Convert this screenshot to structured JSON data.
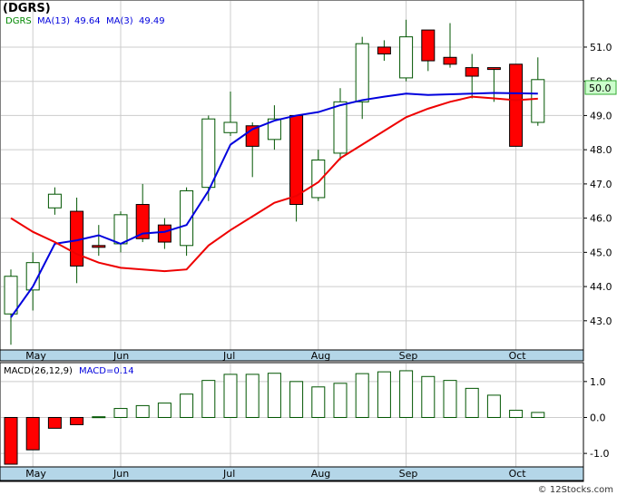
{
  "title": "(DGRS)",
  "legend": {
    "symbol": "DGRS",
    "ma13_label": "MA(13)",
    "ma13_value": "49.64",
    "ma3_label": "MA(3)",
    "ma3_value": "49.49",
    "macd_label": "MACD(26,12,9)",
    "macd_value_label": "MACD=0.14"
  },
  "last_price_label": "50.0",
  "watermark": "© 12Stocks.com",
  "colors": {
    "up_candle": "#ffffff",
    "down_candle": "#ff0000",
    "candle_border": "#005500",
    "ma13": "#0000dd",
    "ma3": "#ee0000",
    "axis_band": "#b4d6e8",
    "grid": "#cccccc",
    "last_price_bg": "#ccffcc"
  },
  "chart_data": [
    {
      "type": "candlestick",
      "title": "(DGRS)",
      "x_tick_labels": [
        {
          "label": "May",
          "index": 1
        },
        {
          "label": "Jun",
          "index": 5
        },
        {
          "label": "Jul",
          "index": 10
        },
        {
          "label": "Aug",
          "index": 14
        },
        {
          "label": "Sep",
          "index": 18
        },
        {
          "label": "Oct",
          "index": 23
        }
      ],
      "y_ticks": [
        43.0,
        44.0,
        45.0,
        46.0,
        47.0,
        48.0,
        49.0,
        50.0,
        51.0
      ],
      "ylim": [
        42.2,
        51.9
      ],
      "candles": [
        {
          "o": 43.2,
          "h": 44.5,
          "l": 42.3,
          "c": 44.3
        },
        {
          "o": 43.9,
          "h": 45.0,
          "l": 43.3,
          "c": 44.7
        },
        {
          "o": 46.3,
          "h": 46.9,
          "l": 46.1,
          "c": 46.7
        },
        {
          "o": 46.2,
          "h": 46.6,
          "l": 44.1,
          "c": 44.6
        },
        {
          "o": 45.2,
          "h": 45.8,
          "l": 44.9,
          "c": 45.15
        },
        {
          "o": 45.25,
          "h": 46.2,
          "l": 45.0,
          "c": 46.1
        },
        {
          "o": 46.4,
          "h": 47.0,
          "l": 45.3,
          "c": 45.4
        },
        {
          "o": 45.8,
          "h": 46.0,
          "l": 45.1,
          "c": 45.3
        },
        {
          "o": 45.2,
          "h": 46.9,
          "l": 44.9,
          "c": 46.8
        },
        {
          "o": 46.9,
          "h": 49.0,
          "l": 46.5,
          "c": 48.9
        },
        {
          "o": 48.5,
          "h": 49.7,
          "l": 48.4,
          "c": 48.8
        },
        {
          "o": 48.7,
          "h": 48.8,
          "l": 47.2,
          "c": 48.1
        },
        {
          "o": 48.3,
          "h": 49.3,
          "l": 48.0,
          "c": 48.9
        },
        {
          "o": 49.0,
          "h": 49.0,
          "l": 45.9,
          "c": 46.4
        },
        {
          "o": 46.6,
          "h": 48.0,
          "l": 46.5,
          "c": 47.7
        },
        {
          "o": 47.9,
          "h": 49.8,
          "l": 47.7,
          "c": 49.4
        },
        {
          "o": 49.4,
          "h": 51.3,
          "l": 48.9,
          "c": 51.1
        },
        {
          "o": 51.0,
          "h": 51.2,
          "l": 50.6,
          "c": 50.8
        },
        {
          "o": 50.1,
          "h": 51.8,
          "l": 50.0,
          "c": 51.3
        },
        {
          "o": 51.5,
          "h": 51.5,
          "l": 50.3,
          "c": 50.6
        },
        {
          "o": 50.7,
          "h": 51.7,
          "l": 50.4,
          "c": 50.5
        },
        {
          "o": 50.4,
          "h": 50.8,
          "l": 49.5,
          "c": 50.15
        },
        {
          "o": 50.4,
          "h": 50.4,
          "l": 49.4,
          "c": 50.35
        },
        {
          "o": 50.5,
          "h": 50.5,
          "l": 48.1,
          "c": 48.1
        },
        {
          "o": 48.8,
          "h": 50.7,
          "l": 48.7,
          "c": 50.05
        }
      ],
      "series": [
        {
          "name": "MA(13)",
          "values": [
            43.1,
            44.0,
            45.25,
            45.35,
            45.5,
            45.25,
            45.55,
            45.6,
            45.8,
            46.8,
            48.15,
            48.6,
            48.85,
            49.0,
            49.1,
            49.3,
            49.45,
            49.55,
            49.64,
            49.6,
            49.62,
            49.64,
            49.66,
            49.65,
            49.64
          ]
        },
        {
          "name": "MA(3)",
          "values": [
            46.0,
            45.6,
            45.3,
            44.95,
            44.7,
            44.55,
            44.5,
            44.45,
            44.5,
            45.2,
            45.65,
            46.05,
            46.45,
            46.65,
            47.05,
            47.75,
            48.15,
            48.55,
            48.95,
            49.2,
            49.4,
            49.55,
            49.5,
            49.45,
            49.49
          ]
        }
      ]
    },
    {
      "type": "bar",
      "title": "MACD(26,12,9)",
      "y_ticks": [
        -1.0,
        0.0,
        1.0
      ],
      "ylim": [
        -1.35,
        1.45
      ],
      "values": [
        -1.3,
        -0.9,
        -0.3,
        -0.2,
        0.02,
        0.25,
        0.33,
        0.4,
        0.65,
        1.03,
        1.2,
        1.2,
        1.23,
        1.0,
        0.85,
        0.95,
        1.22,
        1.27,
        1.3,
        1.14,
        1.03,
        0.81,
        0.62,
        0.2,
        0.14
      ]
    }
  ]
}
